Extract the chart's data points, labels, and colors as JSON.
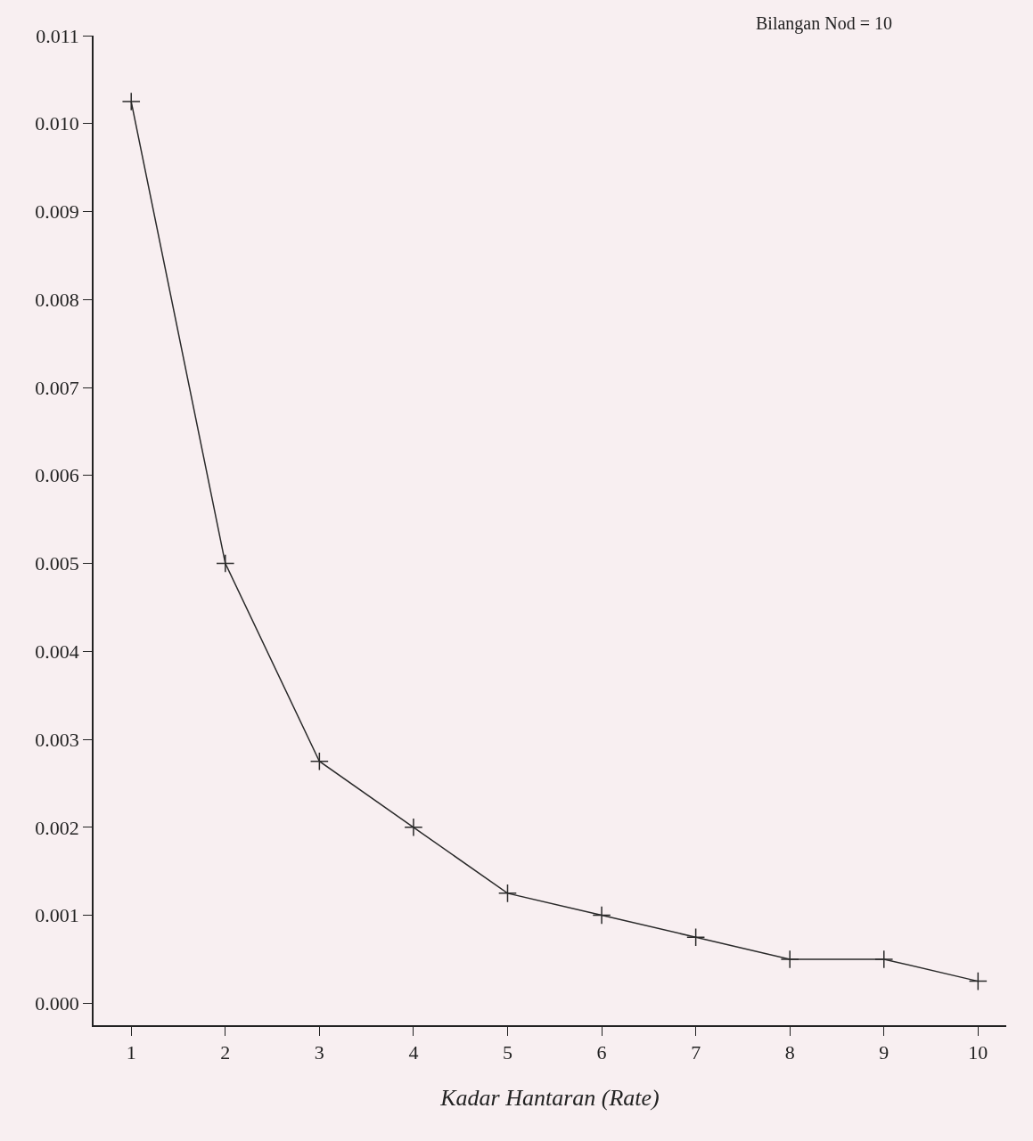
{
  "chart_data": {
    "type": "line",
    "xlabel": "Kadar Hantaran (Rate)",
    "annotations": [
      "Bilangan Nod = 10"
    ],
    "x": [
      1,
      2,
      3,
      4,
      5,
      6,
      7,
      8,
      9,
      10
    ],
    "series": [
      {
        "color": "#2a2a2a",
        "values": [
          0.01025,
          0.005,
          0.00275,
          0.002,
          0.00125,
          0.001,
          0.00075,
          0.0005,
          0.0005,
          0.00025
        ]
      }
    ],
    "xlim": [
      0.6,
      10.3
    ],
    "xticks": [
      1,
      2,
      3,
      4,
      5,
      6,
      7,
      8,
      9,
      10
    ],
    "ylim": [
      -0.00025,
      0.011
    ],
    "yticks": [
      {
        "value": 0,
        "label": "0.000"
      },
      {
        "value": 0.001,
        "label": "0.001"
      },
      {
        "value": 0.002,
        "label": "0.002"
      },
      {
        "value": 0.003,
        "label": "0.003"
      },
      {
        "value": 0.004,
        "label": "0.004"
      },
      {
        "value": 0.005,
        "label": "0.005"
      },
      {
        "value": 0.006,
        "label": "0.006"
      },
      {
        "value": 0.007,
        "label": "0.007"
      },
      {
        "value": 0.008,
        "label": "0.008"
      },
      {
        "value": 0.009,
        "label": "0.009"
      },
      {
        "value": 0.01,
        "label": "0.010"
      },
      {
        "value": 0.011,
        "label": "0.011"
      }
    ],
    "grid": false,
    "marker": "cross",
    "line_style": "solid"
  }
}
